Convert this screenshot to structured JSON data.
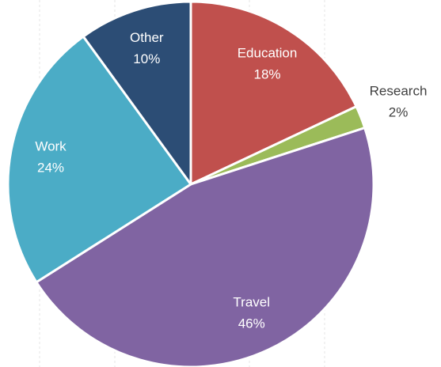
{
  "chart_data": {
    "type": "pie",
    "categories": [
      "Education",
      "Research",
      "Travel",
      "Work",
      "Other"
    ],
    "values": [
      18,
      2,
      46,
      24,
      10
    ],
    "value_labels": [
      "18%",
      "2%",
      "46%",
      "24%",
      "10%"
    ],
    "colors": [
      "#c0504d",
      "#9bbb59",
      "#8064a2",
      "#4bacc6",
      "#2c4d75"
    ]
  }
}
